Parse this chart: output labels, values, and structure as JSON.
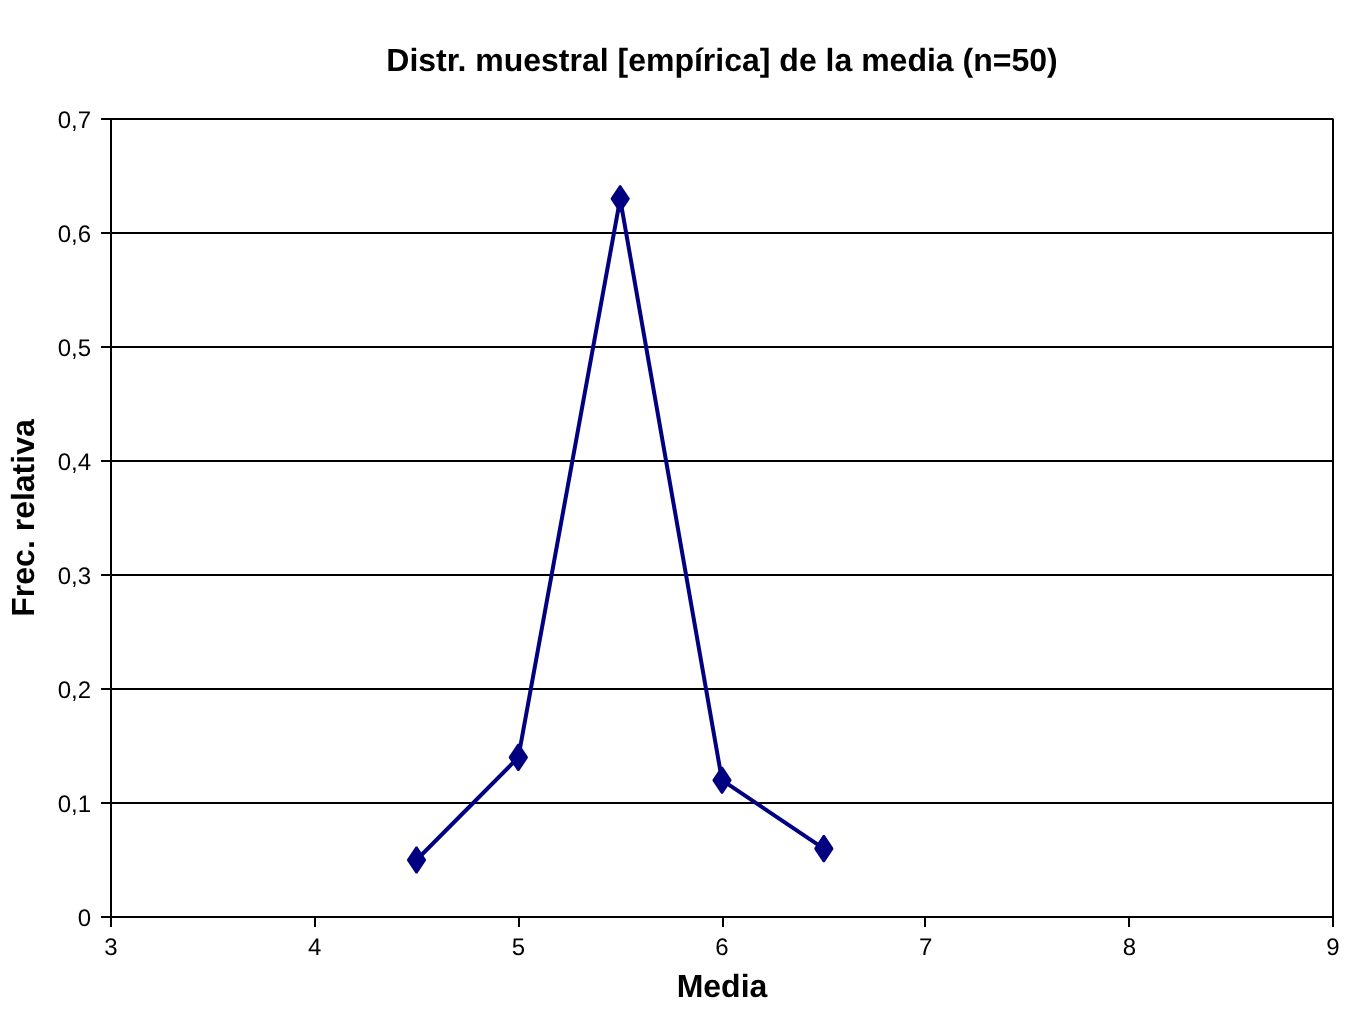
{
  "chart_data": {
    "type": "line",
    "title": "Distr. muestral [empírica] de la media (n=50)",
    "xlabel": "Media",
    "ylabel": "Frec. relativa",
    "x": [
      4.5,
      5,
      5.5,
      6,
      6.5
    ],
    "series": [
      {
        "color": "#000080",
        "values": [
          0.05,
          0.14,
          0.63,
          0.12,
          0.06
        ]
      }
    ],
    "xlim": [
      3,
      9
    ],
    "xticks": [
      3,
      4,
      5,
      6,
      7,
      8,
      9
    ],
    "ylim": [
      0,
      0.7
    ],
    "yticks": [
      0,
      {
        "value": 0.1,
        "label": "0,1"
      },
      {
        "value": 0.2,
        "label": "0,2"
      },
      {
        "value": 0.3,
        "label": "0,3"
      },
      {
        "value": 0.4,
        "label": "0,4"
      },
      {
        "value": 0.5,
        "label": "0,5"
      },
      {
        "value": 0.6,
        "label": "0,6"
      },
      {
        "value": 0.7,
        "label": "0,7"
      }
    ],
    "grid": "y",
    "marker": "diamond",
    "line_style": "solid"
  }
}
